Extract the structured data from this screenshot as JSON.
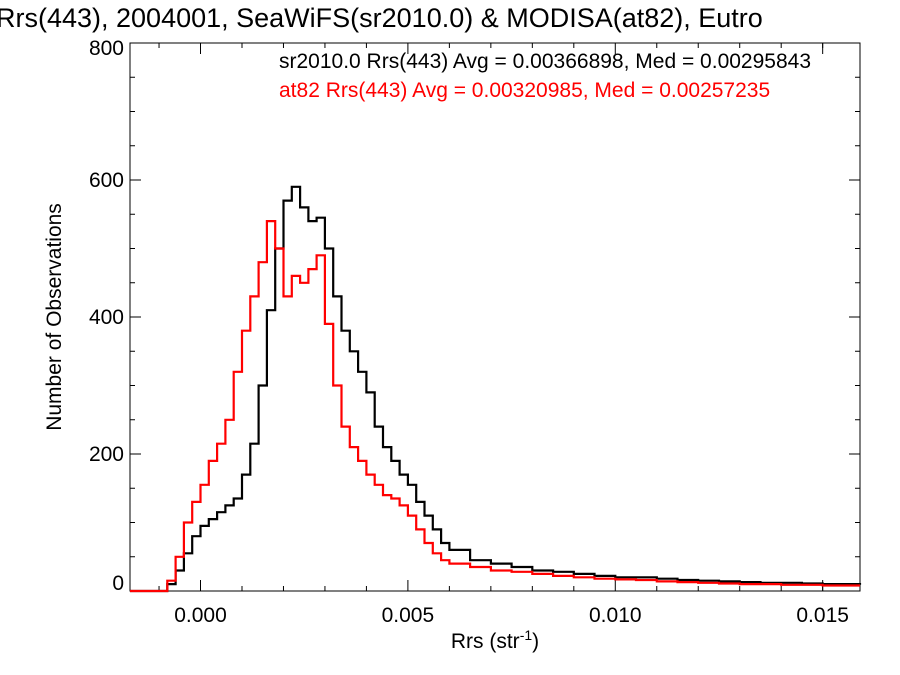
{
  "chart_data": {
    "type": "line",
    "title": "Rrs(443), 2004001, SeaWiFS(sr2010.0) & MODISA(at82), Eutro",
    "xlabel": "Rrs (str",
    "xlabel_sup": "-1",
    "xlabel_close": ")",
    "ylabel": "Number of Observations",
    "xlim": [
      -0.0017,
      0.0159
    ],
    "ylim": [
      0,
      800
    ],
    "x_ticks": [
      {
        "value": 0.0,
        "label": "0.000"
      },
      {
        "value": 0.005,
        "label": "0.005"
      },
      {
        "value": 0.01,
        "label": "0.010"
      },
      {
        "value": 0.015,
        "label": "0.015"
      }
    ],
    "y_ticks": [
      {
        "value": 0,
        "label": "0"
      },
      {
        "value": 200,
        "label": "200"
      },
      {
        "value": 400,
        "label": "400"
      },
      {
        "value": 600,
        "label": "600"
      },
      {
        "value": 800,
        "label": "800"
      }
    ],
    "stats": [
      {
        "text": "sr2010.0 Rrs(443) Avg = 0.00366898, Med = 0.00295843",
        "color": "#000000"
      },
      {
        "text": "at82 Rrs(443) Avg = 0.00320985, Med = 0.00257235",
        "color": "#ff0000"
      }
    ],
    "series": [
      {
        "color": "#000000",
        "x": [
          -0.0017,
          -0.001,
          -0.0008,
          -0.0006,
          -0.0004,
          -0.0002,
          0.0,
          0.0002,
          0.0004,
          0.0006,
          0.0008,
          0.001,
          0.0012,
          0.0014,
          0.0016,
          0.0018,
          0.002,
          0.0022,
          0.0024,
          0.0026,
          0.0028,
          0.003,
          0.0032,
          0.0034,
          0.0036,
          0.0038,
          0.004,
          0.0042,
          0.0044,
          0.0046,
          0.0048,
          0.005,
          0.0052,
          0.0054,
          0.0056,
          0.0058,
          0.006,
          0.0065,
          0.007,
          0.0075,
          0.008,
          0.0085,
          0.009,
          0.0095,
          0.01,
          0.0105,
          0.011,
          0.0115,
          0.012,
          0.0125,
          0.013,
          0.0135,
          0.014,
          0.0145,
          0.015,
          0.0155,
          0.0159
        ],
        "y": [
          0,
          0,
          10,
          30,
          55,
          80,
          95,
          105,
          115,
          125,
          135,
          170,
          215,
          300,
          410,
          500,
          570,
          590,
          560,
          540,
          545,
          500,
          430,
          380,
          350,
          320,
          290,
          240,
          210,
          190,
          170,
          155,
          130,
          110,
          90,
          70,
          60,
          45,
          40,
          35,
          30,
          28,
          25,
          22,
          20,
          20,
          18,
          16,
          15,
          14,
          13,
          12,
          12,
          11,
          10,
          10,
          9
        ]
      },
      {
        "color": "#ff0000",
        "x": [
          -0.0017,
          -0.001,
          -0.0008,
          -0.0006,
          -0.0004,
          -0.0002,
          0.0,
          0.0002,
          0.0004,
          0.0006,
          0.0008,
          0.001,
          0.0012,
          0.0014,
          0.0016,
          0.0018,
          0.002,
          0.0022,
          0.0024,
          0.0026,
          0.0028,
          0.003,
          0.0032,
          0.0034,
          0.0036,
          0.0038,
          0.004,
          0.0042,
          0.0044,
          0.0046,
          0.0048,
          0.005,
          0.0052,
          0.0054,
          0.0056,
          0.0058,
          0.006,
          0.0065,
          0.007,
          0.0075,
          0.008,
          0.0085,
          0.009,
          0.0095,
          0.01,
          0.0105,
          0.011,
          0.0115,
          0.012,
          0.0125,
          0.013,
          0.0135,
          0.014,
          0.0145,
          0.015,
          0.0155,
          0.0159
        ],
        "y": [
          0,
          0,
          15,
          50,
          100,
          130,
          155,
          190,
          215,
          250,
          320,
          380,
          430,
          480,
          540,
          500,
          430,
          460,
          450,
          470,
          490,
          390,
          300,
          240,
          210,
          190,
          170,
          155,
          140,
          135,
          125,
          110,
          90,
          70,
          55,
          45,
          40,
          35,
          30,
          28,
          25,
          22,
          20,
          18,
          17,
          16,
          14,
          13,
          12,
          11,
          10,
          10,
          9,
          9,
          8,
          8,
          8
        ]
      }
    ]
  }
}
